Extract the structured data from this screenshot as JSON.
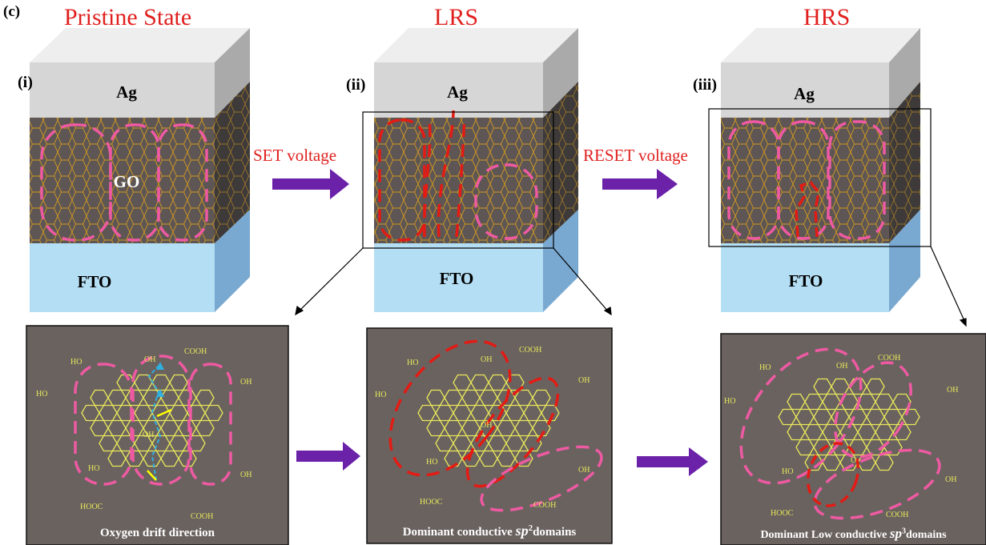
{
  "panel_label": "(c)",
  "states": [
    {
      "title": "Pristine State",
      "roman": "(i)",
      "top": "Ag",
      "middle": "GO",
      "bottom": "FTO"
    },
    {
      "title": "LRS",
      "roman": "(ii)",
      "top": "Ag",
      "middle": "",
      "bottom": "FTO"
    },
    {
      "title": "HRS",
      "roman": "(iii)",
      "top": "Ag",
      "middle": "",
      "bottom": "FTO"
    }
  ],
  "arrows": {
    "set": "SET voltage",
    "reset": "RESET voltage"
  },
  "chem_labels": {
    "ho": "HO",
    "oh": "OH",
    "cooh": "COOH",
    "hooc": "HOOC",
    "o": "O"
  },
  "subpanels": [
    {
      "pre": "Oxygen drift direction",
      "italic": "",
      "sup": "",
      "post": ""
    },
    {
      "pre": "Dominant conductive ",
      "italic": "sp",
      "sup": "2",
      "post": "domains"
    },
    {
      "pre": "Dominant Low conductive ",
      "italic": "sp",
      "sup": "3",
      "post": "domains"
    }
  ],
  "colors": {
    "title_red": "#e0201e",
    "ag": "#d6d6d6",
    "go": "#5e5654",
    "fto": "#b3def3",
    "lattice": "#d39a1f",
    "dash_pink": "#ee5aa2",
    "dash_red": "#e31b14",
    "arrow_purple": "#6b21a8",
    "panel_bg": "#6a625f",
    "chem": "#e8e85a",
    "drift": "#2fb0e0"
  }
}
